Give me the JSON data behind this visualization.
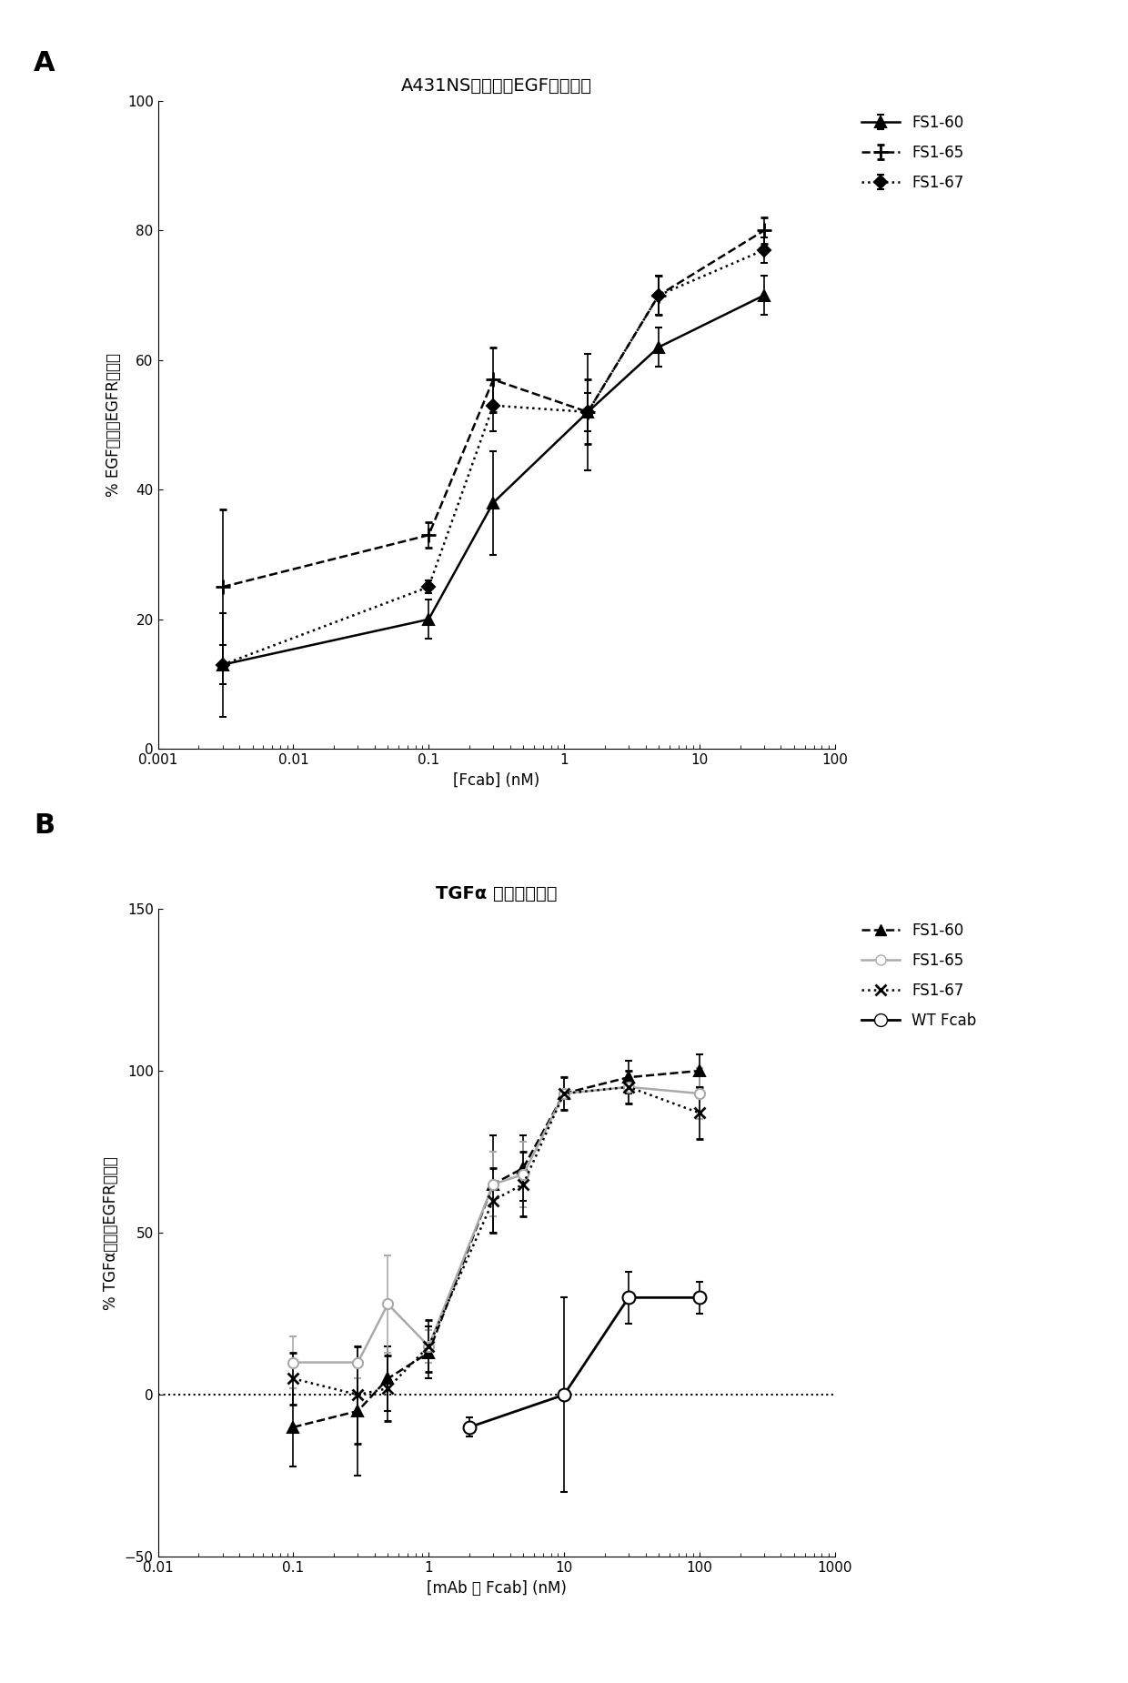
{
  "panel_A": {
    "title": "A431NS细胞上的EGF配体阻断",
    "xlabel": "[Fcab] (nM)",
    "ylabel": "% EGF结合至EGFR的抑制",
    "xlim": [
      0.001,
      100
    ],
    "ylim": [
      0,
      100
    ],
    "yticks": [
      0,
      20,
      40,
      60,
      80,
      100
    ],
    "series": {
      "FS1-60": {
        "x": [
          0.003,
          0.1,
          0.3,
          1.5,
          5,
          30
        ],
        "y": [
          13,
          20,
          38,
          52,
          62,
          70
        ],
        "yerr": [
          8,
          3,
          8,
          9,
          3,
          3
        ],
        "marker": "^",
        "linestyle": "-",
        "color": "#000000",
        "markersize": 8,
        "linewidth": 1.8,
        "markerfacecolor": "#000000"
      },
      "FS1-65": {
        "x": [
          0.003,
          0.1,
          0.3,
          1.5,
          5,
          30
        ],
        "y": [
          25,
          33,
          57,
          52,
          70,
          80
        ],
        "yerr": [
          12,
          2,
          5,
          5,
          3,
          2
        ],
        "marker": "+",
        "linestyle": "--",
        "color": "#000000",
        "markersize": 11,
        "linewidth": 1.8,
        "markerfacecolor": "#000000",
        "markeredgewidth": 2.0
      },
      "FS1-67": {
        "x": [
          0.003,
          0.1,
          0.3,
          1.5,
          5,
          30
        ],
        "y": [
          13,
          25,
          53,
          52,
          70,
          77
        ],
        "yerr": [
          3,
          1,
          4,
          3,
          3,
          2
        ],
        "marker": "D",
        "linestyle": ":",
        "color": "#000000",
        "markersize": 7,
        "linewidth": 1.8,
        "markerfacecolor": "#000000"
      }
    }
  },
  "panel_B": {
    "title_bold": "TGFα",
    "title_normal": " 配体阻断试验",
    "xlabel": "[mAb 或 Fcab] (nM)",
    "ylabel": "% TGFα结合至EGFR的抑制",
    "xlim": [
      0.01,
      1000
    ],
    "ylim": [
      -50,
      150
    ],
    "yticks": [
      -50,
      0,
      50,
      100,
      150
    ],
    "series": {
      "FS1-60": {
        "x": [
          0.1,
          0.3,
          0.5,
          1,
          3,
          5,
          10,
          30,
          100
        ],
        "y": [
          -10,
          -5,
          5,
          13,
          65,
          70,
          93,
          98,
          100
        ],
        "yerr": [
          12,
          20,
          10,
          8,
          15,
          10,
          5,
          5,
          5
        ],
        "marker": "^",
        "linestyle": "--",
        "color": "#000000",
        "markersize": 8,
        "linewidth": 1.8,
        "markerfacecolor": "#000000"
      },
      "FS1-65": {
        "x": [
          0.1,
          0.3,
          0.5,
          1,
          3,
          5,
          10,
          30,
          100
        ],
        "y": [
          10,
          10,
          28,
          15,
          65,
          68,
          93,
          95,
          93
        ],
        "yerr": [
          8,
          5,
          15,
          5,
          10,
          10,
          5,
          5,
          8
        ],
        "marker": "o",
        "linestyle": "-",
        "color": "#aaaaaa",
        "markersize": 8,
        "linewidth": 1.8,
        "markerfacecolor": "#ffffff",
        "markeredgecolor": "#aaaaaa"
      },
      "FS1-67": {
        "x": [
          0.1,
          0.3,
          0.5,
          1,
          3,
          5,
          10,
          30,
          100
        ],
        "y": [
          5,
          0,
          2,
          15,
          60,
          65,
          93,
          95,
          87
        ],
        "yerr": [
          8,
          15,
          10,
          8,
          10,
          10,
          5,
          5,
          8
        ],
        "marker": "x",
        "linestyle": ":",
        "color": "#000000",
        "markersize": 9,
        "linewidth": 1.8,
        "markerfacecolor": "#000000",
        "markeredgewidth": 2.0
      },
      "WT Fcab": {
        "x": [
          2,
          10,
          30,
          100
        ],
        "y": [
          -10,
          0,
          30,
          30
        ],
        "yerr": [
          3,
          30,
          8,
          5
        ],
        "marker": "o",
        "linestyle": "-",
        "color": "#000000",
        "markersize": 10,
        "linewidth": 2.0,
        "markerfacecolor": "#ffffff",
        "markeredgecolor": "#000000"
      }
    }
  },
  "background_color": "#ffffff",
  "label_A": "A",
  "label_B": "B"
}
